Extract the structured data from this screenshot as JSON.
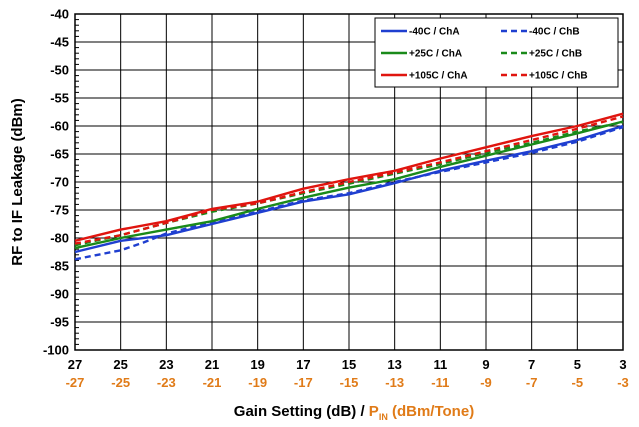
{
  "chart_data": {
    "type": "line",
    "x_ticks_primary": [
      "27",
      "25",
      "23",
      "21",
      "19",
      "17",
      "15",
      "13",
      "11",
      "9",
      "7",
      "5",
      "3"
    ],
    "x_ticks_secondary": [
      "-27",
      "-25",
      "-23",
      "-21",
      "-19",
      "-17",
      "-15",
      "-13",
      "-11",
      "-9",
      "-7",
      "-5",
      "-3"
    ],
    "xlim": [
      27,
      3
    ],
    "ylim": [
      -100,
      -40
    ],
    "y_ticks": [
      "-40",
      "-45",
      "-50",
      "-55",
      "-60",
      "-65",
      "-70",
      "-75",
      "-80",
      "-85",
      "-90",
      "-95",
      "-100"
    ],
    "ylabel": "RF to IF Leakage (dBm)",
    "xlabel": {
      "part1": "Gain Setting (dB) / ",
      "part2_main": "P",
      "part2_sub": "IN",
      "part2_rest": " (dBm/Tone)"
    },
    "grid": true,
    "legend_position": "top-right",
    "colors": {
      "blue": "#1f3fd0",
      "green": "#1a8a1a",
      "red": "#e0150f",
      "orange": "#e07b18"
    },
    "series": [
      {
        "name": "-40C / ChA",
        "color": "#1f3fd0",
        "dash": false,
        "x": [
          27,
          25,
          23,
          21,
          19,
          17,
          15,
          13,
          11,
          9,
          7,
          5,
          3
        ],
        "y": [
          -82.5,
          -80.5,
          -79.5,
          -77.5,
          -75.5,
          -73.5,
          -72.2,
          -70.2,
          -68,
          -66.2,
          -64.5,
          -62.5,
          -60
        ]
      },
      {
        "name": "-40C / ChB",
        "color": "#1f3fd0",
        "dash": true,
        "x": [
          27,
          25,
          24,
          23,
          21,
          19,
          17,
          15,
          13,
          11,
          9,
          7,
          5,
          3
        ],
        "y": [
          -83.8,
          -82.2,
          -80.8,
          -79.2,
          -77.2,
          -75.3,
          -73.3,
          -72,
          -70,
          -68.2,
          -66.5,
          -64.8,
          -62.8,
          -60.2
        ]
      },
      {
        "name": "+25C / ChA",
        "color": "#1a8a1a",
        "dash": false,
        "x": [
          27,
          25,
          23,
          21,
          19,
          17,
          15,
          13,
          11,
          9,
          7,
          5,
          3
        ],
        "y": [
          -81.8,
          -80,
          -78.5,
          -77,
          -74.8,
          -72.8,
          -71,
          -69.5,
          -67.3,
          -65.3,
          -63.3,
          -61.3,
          -59.2
        ]
      },
      {
        "name": "+25C / ChB",
        "color": "#1a8a1a",
        "dash": true,
        "x": [
          27,
          25,
          23,
          21,
          19,
          17,
          15,
          13,
          11,
          9,
          7,
          5,
          3
        ],
        "y": [
          -81.3,
          -79.5,
          -77.3,
          -75.3,
          -73.8,
          -72,
          -70.3,
          -68.5,
          -66.8,
          -64.8,
          -63,
          -61,
          -59.3
        ]
      },
      {
        "name": "+105C / ChA",
        "color": "#e0150f",
        "dash": false,
        "x": [
          27,
          25,
          23,
          21,
          19,
          17,
          15,
          13,
          11,
          9,
          7,
          5,
          3
        ],
        "y": [
          -80.5,
          -78.5,
          -77,
          -74.8,
          -73.5,
          -71.2,
          -69.5,
          -68,
          -65.8,
          -63.8,
          -61.8,
          -60,
          -57.8
        ]
      },
      {
        "name": "+105C / ChB",
        "color": "#e0150f",
        "dash": true,
        "x": [
          27,
          25,
          23,
          21,
          19,
          17,
          15,
          13,
          11,
          9,
          7,
          5,
          3
        ],
        "y": [
          -81,
          -79.5,
          -77.3,
          -75,
          -73.8,
          -71.8,
          -70,
          -68.3,
          -66.5,
          -64.5,
          -62.5,
          -60.5,
          -58.3
        ]
      }
    ]
  }
}
